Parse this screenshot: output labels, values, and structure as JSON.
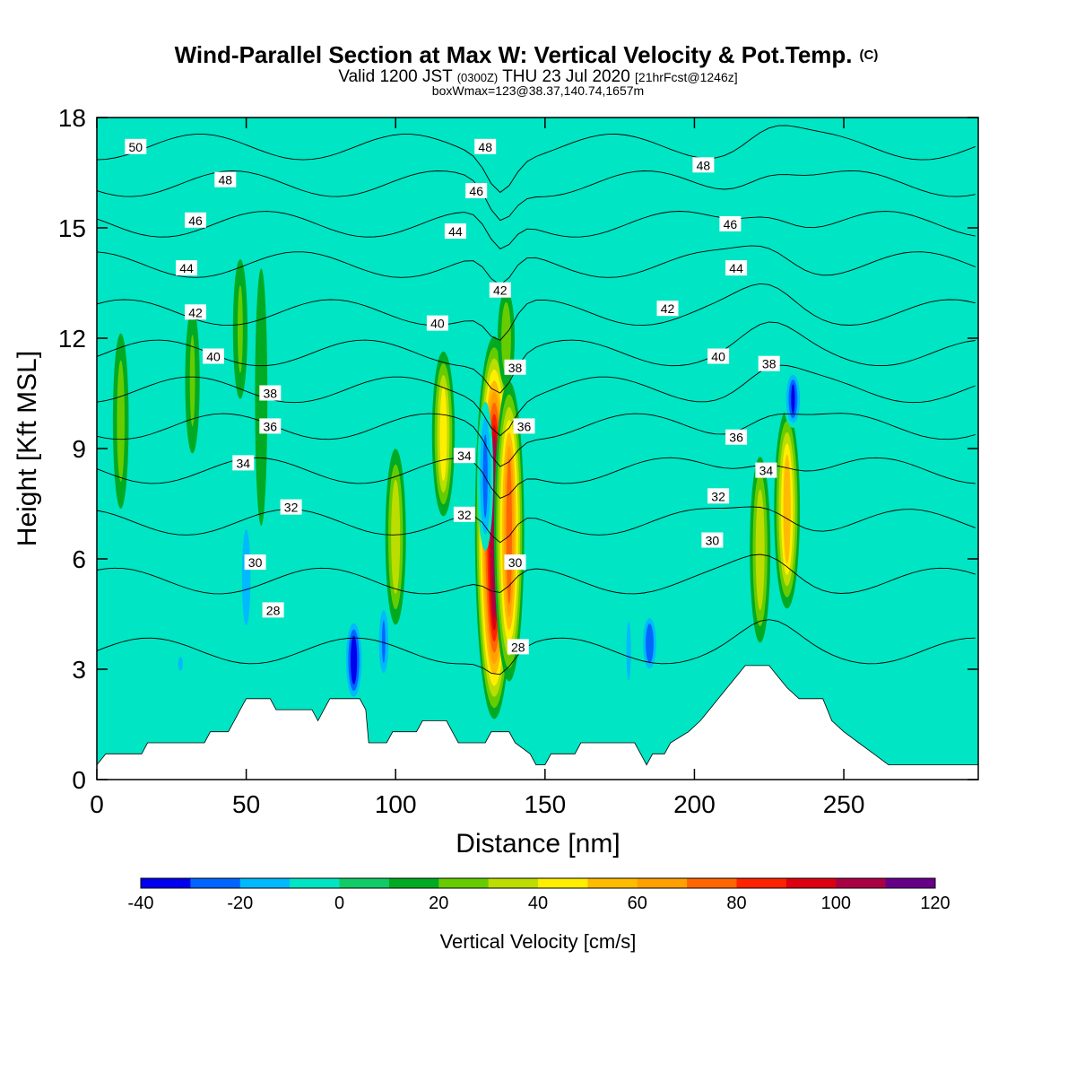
{
  "title": {
    "main": "Wind-Parallel Section at Max W: Vertical Velocity & Pot.Temp.",
    "copyright": "(C)",
    "valid_prefix": "Valid 1200 JST",
    "valid_z": "(0300Z)",
    "valid_date": "THU 23 Jul 2020",
    "forecast": "[21hrFcst@1246z]",
    "box": "boxWmax=123@38.37,140.74,1657m"
  },
  "colors": {
    "background_field": "#00e5c3",
    "terrain": "#ffffff",
    "contour": "#000000"
  },
  "chart_data": {
    "type": "heatmap",
    "xlabel": "Distance [nm]",
    "ylabel": "Height [Kft MSL]",
    "xlim": [
      0,
      295
    ],
    "ylim": [
      0,
      18
    ],
    "xticks": [
      "0",
      "50",
      "100",
      "150",
      "200",
      "250"
    ],
    "yticks": [
      "0",
      "3",
      "6",
      "9",
      "12",
      "15",
      "18"
    ],
    "xtick_values": [
      0,
      50,
      100,
      150,
      200,
      250
    ],
    "ytick_values": [
      0,
      3,
      6,
      9,
      12,
      15,
      18
    ],
    "colorbar": {
      "label": "Vertical Velocity [cm/s]",
      "bounds": [
        -40,
        -30,
        -20,
        -10,
        0,
        10,
        20,
        30,
        40,
        50,
        60,
        70,
        80,
        90,
        100,
        110,
        120
      ],
      "tick_labels": [
        "-40",
        "-20",
        "0",
        "20",
        "40",
        "60",
        "80",
        "100",
        "120"
      ],
      "tick_values": [
        -40,
        -20,
        0,
        20,
        40,
        60,
        80,
        100,
        120
      ],
      "colors": [
        "#0000ee",
        "#0066ff",
        "#00b9ff",
        "#00e5c3",
        "#11cc66",
        "#00aa22",
        "#66cc00",
        "#bbdd00",
        "#ffee00",
        "#ffbb00",
        "#ffa000",
        "#ff6600",
        "#ff2200",
        "#dd0011",
        "#aa0044",
        "#660088"
      ]
    },
    "background_value": 5,
    "terrain_profile": [
      [
        0,
        0.4
      ],
      [
        3,
        0.7
      ],
      [
        15,
        0.7
      ],
      [
        17,
        1.0
      ],
      [
        36,
        1.0
      ],
      [
        38,
        1.3
      ],
      [
        44,
        1.3
      ],
      [
        46,
        1.6
      ],
      [
        48,
        1.9
      ],
      [
        50,
        2.2
      ],
      [
        58,
        2.2
      ],
      [
        60,
        1.9
      ],
      [
        72,
        1.9
      ],
      [
        74,
        1.6
      ],
      [
        76,
        1.9
      ],
      [
        78,
        2.2
      ],
      [
        88,
        2.2
      ],
      [
        90,
        1.9
      ],
      [
        91,
        1.0
      ],
      [
        97,
        1.0
      ],
      [
        99,
        1.3
      ],
      [
        107,
        1.3
      ],
      [
        109,
        1.6
      ],
      [
        117,
        1.6
      ],
      [
        119,
        1.3
      ],
      [
        121,
        1.0
      ],
      [
        130,
        1.0
      ],
      [
        132,
        1.3
      ],
      [
        138,
        1.3
      ],
      [
        140,
        1.0
      ],
      [
        145,
        0.7
      ],
      [
        147,
        0.4
      ],
      [
        150,
        0.4
      ],
      [
        152,
        0.7
      ],
      [
        160,
        0.7
      ],
      [
        162,
        1.0
      ],
      [
        180,
        1.0
      ],
      [
        182,
        0.7
      ],
      [
        184,
        0.4
      ],
      [
        186,
        0.7
      ],
      [
        190,
        0.7
      ],
      [
        192,
        1.0
      ],
      [
        198,
        1.3
      ],
      [
        202,
        1.6
      ],
      [
        205,
        1.9
      ],
      [
        208,
        2.2
      ],
      [
        211,
        2.5
      ],
      [
        214,
        2.8
      ],
      [
        217,
        3.1
      ],
      [
        225,
        3.1
      ],
      [
        228,
        2.8
      ],
      [
        231,
        2.5
      ],
      [
        235,
        2.2
      ],
      [
        243,
        2.2
      ],
      [
        246,
        1.6
      ],
      [
        250,
        1.3
      ],
      [
        255,
        1.0
      ],
      [
        260,
        0.7
      ],
      [
        265,
        0.4
      ],
      [
        295,
        0.4
      ]
    ],
    "vertical_velocity_features": [
      {
        "x": 8,
        "z0": 7.0,
        "z1": 12.5,
        "peak": 25
      },
      {
        "x": 32,
        "z0": 8.5,
        "z1": 13.2,
        "peak": 22
      },
      {
        "x": 48,
        "z0": 10.0,
        "z1": 14.5,
        "peak": 22
      },
      {
        "x": 55,
        "z0": 6.0,
        "z1": 14.8,
        "peak": 18
      },
      {
        "x": 100,
        "z0": 4.0,
        "z1": 9.2,
        "peak": 38
      },
      {
        "x": 116,
        "z0": 7.0,
        "z1": 11.8,
        "peak": 45
      },
      {
        "x": 133,
        "z0": 1.5,
        "z1": 12.2,
        "peak": 100
      },
      {
        "x": 138,
        "z0": 2.5,
        "z1": 11.0,
        "peak": 70
      },
      {
        "x": 137,
        "z0": 10.5,
        "z1": 13.5,
        "peak": 28
      },
      {
        "x": 222,
        "z0": 3.5,
        "z1": 9.0,
        "peak": 38
      },
      {
        "x": 231,
        "z0": 4.5,
        "z1": 10.2,
        "peak": 55
      },
      {
        "x": 50,
        "z0": 3.5,
        "z1": 7.5,
        "peak": -18
      },
      {
        "x": 28,
        "z0": 2.8,
        "z1": 3.5,
        "peak": -12
      },
      {
        "x": 86,
        "z0": 2.0,
        "z1": 4.5,
        "peak": -35
      },
      {
        "x": 96,
        "z0": 2.5,
        "z1": 5.0,
        "peak": -20
      },
      {
        "x": 130,
        "z0": 6.0,
        "z1": 10.5,
        "peak": -22
      },
      {
        "x": 178,
        "z0": 2.0,
        "z1": 5.0,
        "peak": -12
      },
      {
        "x": 185,
        "z0": 2.8,
        "z1": 4.6,
        "peak": -28
      },
      {
        "x": 233,
        "z0": 9.5,
        "z1": 11.2,
        "peak": -30
      }
    ],
    "theta_contours": [
      {
        "value": 28,
        "label": "28",
        "base_z": 3.5
      },
      {
        "value": 30,
        "label": "30",
        "base_z": 5.4
      },
      {
        "value": 32,
        "label": "32",
        "base_z": 7.0
      },
      {
        "value": 34,
        "label": "34",
        "base_z": 8.4
      },
      {
        "value": 36,
        "label": "36",
        "base_z": 9.6
      },
      {
        "value": 38,
        "label": "38",
        "base_z": 10.6
      },
      {
        "value": 40,
        "label": "40",
        "base_z": 11.6
      },
      {
        "value": 42,
        "label": "42",
        "base_z": 12.7
      },
      {
        "value": 44,
        "label": "44",
        "base_z": 14.0
      },
      {
        "value": 46,
        "label": "46",
        "base_z": 15.1
      },
      {
        "value": 48,
        "label": "48",
        "base_z": 16.2
      },
      {
        "value": 50,
        "label": "50",
        "base_z": 17.2
      }
    ],
    "contour_labels": [
      {
        "text": "50",
        "x": 13,
        "z": 17.2
      },
      {
        "text": "48",
        "x": 43,
        "z": 16.3
      },
      {
        "text": "46",
        "x": 33,
        "z": 15.2
      },
      {
        "text": "44",
        "x": 30,
        "z": 13.9
      },
      {
        "text": "42",
        "x": 33,
        "z": 12.7
      },
      {
        "text": "40",
        "x": 39,
        "z": 11.5
      },
      {
        "text": "38",
        "x": 58,
        "z": 10.5
      },
      {
        "text": "36",
        "x": 58,
        "z": 9.6
      },
      {
        "text": "34",
        "x": 49,
        "z": 8.6
      },
      {
        "text": "32",
        "x": 65,
        "z": 7.4
      },
      {
        "text": "30",
        "x": 53,
        "z": 5.9
      },
      {
        "text": "28",
        "x": 59,
        "z": 4.6
      },
      {
        "text": "48",
        "x": 130,
        "z": 17.2
      },
      {
        "text": "46",
        "x": 127,
        "z": 16.0
      },
      {
        "text": "44",
        "x": 120,
        "z": 14.9
      },
      {
        "text": "42",
        "x": 135,
        "z": 13.3
      },
      {
        "text": "40",
        "x": 114,
        "z": 12.4
      },
      {
        "text": "38",
        "x": 140,
        "z": 11.2
      },
      {
        "text": "36",
        "x": 143,
        "z": 9.6
      },
      {
        "text": "34",
        "x": 123,
        "z": 8.8
      },
      {
        "text": "32",
        "x": 123,
        "z": 7.2
      },
      {
        "text": "30",
        "x": 140,
        "z": 5.9
      },
      {
        "text": "28",
        "x": 141,
        "z": 3.6
      },
      {
        "text": "48",
        "x": 203,
        "z": 16.7
      },
      {
        "text": "46",
        "x": 212,
        "z": 15.1
      },
      {
        "text": "44",
        "x": 214,
        "z": 13.9
      },
      {
        "text": "42",
        "x": 191,
        "z": 12.8
      },
      {
        "text": "40",
        "x": 208,
        "z": 11.5
      },
      {
        "text": "38",
        "x": 225,
        "z": 11.3
      },
      {
        "text": "36",
        "x": 214,
        "z": 9.3
      },
      {
        "text": "34",
        "x": 224,
        "z": 8.4
      },
      {
        "text": "32",
        "x": 208,
        "z": 7.7
      },
      {
        "text": "30",
        "x": 206,
        "z": 6.5
      }
    ]
  }
}
